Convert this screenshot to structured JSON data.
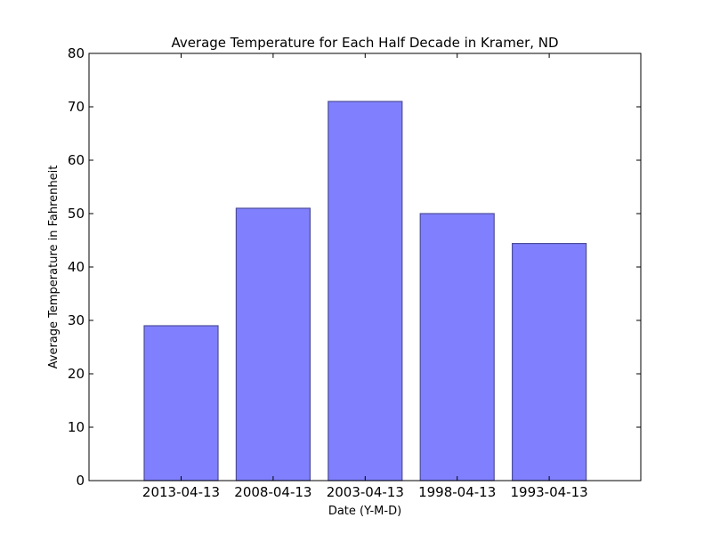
{
  "chart_data": {
    "type": "bar",
    "title": "Average Temperature for Each Half Decade in Kramer, ND",
    "xlabel": "Date (Y-M-D)",
    "ylabel": "Average Temperature in Fahrenheit",
    "categories": [
      "2013-04-13",
      "2008-04-13",
      "2003-04-13",
      "1998-04-13",
      "1993-04-13"
    ],
    "values": [
      29,
      51,
      71,
      50,
      44.4
    ],
    "ylim": [
      0,
      80
    ],
    "yticks": [
      0,
      10,
      20,
      30,
      40,
      50,
      60,
      70,
      80
    ],
    "grid": false,
    "legend": "none",
    "colors": {
      "bar_fill": "#8080ff",
      "bar_stroke": "#4d4d99",
      "axis": "#000000"
    }
  }
}
